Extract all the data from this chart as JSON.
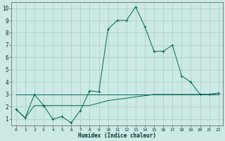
{
  "xlabel": "Humidex (Indice chaleur)",
  "background_color": "#cce9e4",
  "grid_color": "#aad4cc",
  "line_color": "#006655",
  "xlim": [
    -0.5,
    22.5
  ],
  "ylim": [
    0.5,
    10.5
  ],
  "xticks": [
    0,
    1,
    2,
    3,
    4,
    5,
    6,
    7,
    8,
    9,
    10,
    11,
    12,
    13,
    14,
    15,
    16,
    17,
    18,
    19,
    20,
    21,
    22
  ],
  "yticks": [
    1,
    2,
    3,
    4,
    5,
    6,
    7,
    8,
    9,
    10
  ],
  "line1_x": [
    0,
    1,
    2,
    3,
    4,
    5,
    6,
    7,
    8,
    9,
    10,
    11,
    12,
    13,
    14,
    15,
    16,
    17,
    18,
    19,
    20,
    21,
    22
  ],
  "line1_y": [
    1.8,
    1.1,
    3.0,
    2.1,
    1.0,
    1.2,
    0.7,
    1.7,
    3.3,
    3.2,
    8.3,
    9.0,
    9.0,
    10.1,
    8.5,
    6.5,
    6.5,
    7.0,
    4.5,
    4.0,
    3.0,
    3.0,
    3.1
  ],
  "line2_x": [
    0,
    1,
    2,
    3,
    4,
    5,
    6,
    7,
    8,
    9,
    10,
    11,
    12,
    13,
    14,
    15,
    16,
    17,
    18,
    19,
    20,
    21,
    22
  ],
  "line2_y": [
    1.8,
    1.1,
    2.1,
    2.1,
    2.1,
    2.1,
    2.1,
    2.1,
    2.1,
    2.3,
    2.5,
    2.6,
    2.7,
    2.8,
    2.9,
    3.0,
    3.0,
    3.0,
    3.0,
    3.0,
    3.0,
    3.0,
    3.1
  ],
  "line3_x": [
    0,
    22
  ],
  "line3_y": [
    3.0,
    3.0
  ]
}
